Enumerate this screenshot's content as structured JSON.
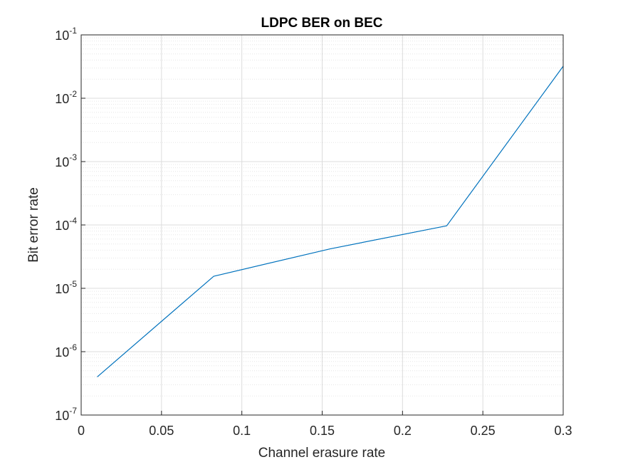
{
  "chart_data": {
    "type": "line",
    "title": "LDPC BER on BEC",
    "xlabel": "Channel erasure rate",
    "ylabel": "Bit error rate",
    "xlim": [
      0,
      0.3
    ],
    "ylim": [
      1e-07,
      0.1
    ],
    "yscale": "log",
    "grid": true,
    "minor_grid": true,
    "x_ticks": [
      0,
      0.05,
      0.1,
      0.15,
      0.2,
      0.25,
      0.3
    ],
    "x_tick_labels": [
      "0",
      "0.05",
      "0.1",
      "0.15",
      "0.2",
      "0.25",
      "0.3"
    ],
    "y_ticks": [
      {
        "value": 1e-07,
        "base": "10",
        "exp": "-7"
      },
      {
        "value": 1e-06,
        "base": "10",
        "exp": "-6"
      },
      {
        "value": 1e-05,
        "base": "10",
        "exp": "-5"
      },
      {
        "value": 0.0001,
        "base": "10",
        "exp": "-4"
      },
      {
        "value": 0.001,
        "base": "10",
        "exp": "-3"
      },
      {
        "value": 0.01,
        "base": "10",
        "exp": "-2"
      },
      {
        "value": 0.1,
        "base": "10",
        "exp": "-1"
      }
    ],
    "series": [
      {
        "color": "#0072bd",
        "x": [
          0.01,
          0.0825,
          0.155,
          0.2275,
          0.3
        ],
        "y": [
          4e-07,
          1.55e-05,
          4.2e-05,
          9.7e-05,
          0.032
        ]
      }
    ]
  }
}
